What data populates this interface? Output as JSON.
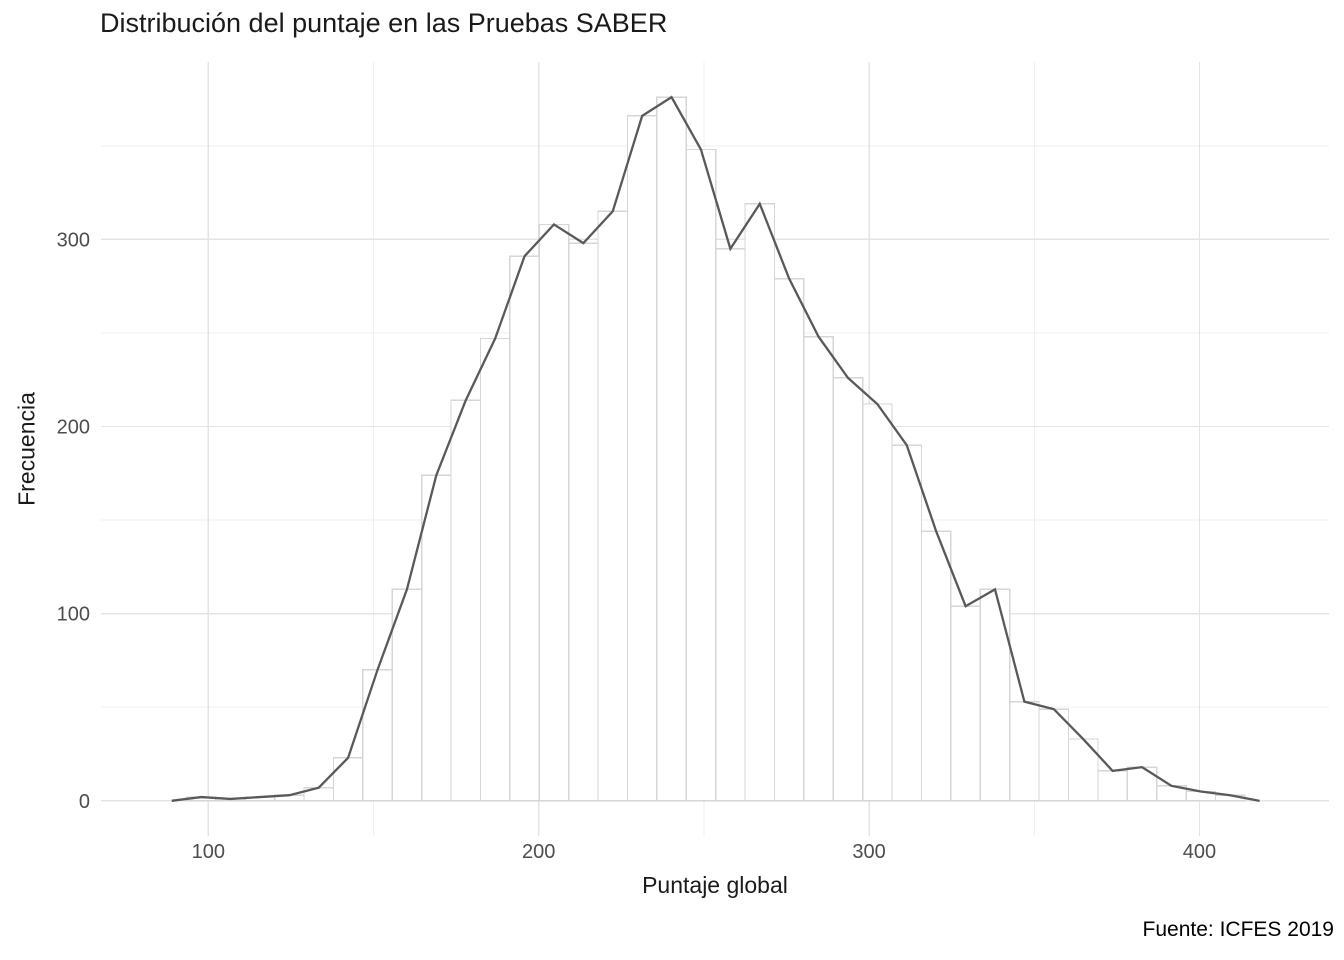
{
  "title": "Distribución del puntaje en las Pruebas SABER",
  "caption": "Fuente: ICFES 2019",
  "chart_data": {
    "type": "bar",
    "subtype": "histogram-with-frequency-polygon",
    "title": "Distribución del puntaje en las Pruebas SABER",
    "xlabel": "Puntaje global",
    "ylabel": "Frecuencia",
    "caption": "Fuente: ICFES 2019",
    "binwidth": 8.9,
    "bin_centers": [
      97.8,
      106.7,
      115.6,
      124.5,
      133.4,
      142.3,
      151.2,
      160.1,
      169.0,
      177.9,
      186.8,
      195.7,
      204.6,
      213.5,
      222.4,
      231.3,
      240.2,
      249.1,
      258.0,
      266.9,
      275.8,
      284.7,
      293.6,
      302.5,
      311.4,
      320.3,
      329.2,
      338.1,
      347.0,
      355.9,
      364.8,
      373.7,
      382.6,
      391.5,
      400.4,
      409.3
    ],
    "bin_values": [
      2,
      1,
      2,
      3,
      7,
      23,
      70,
      113,
      174,
      214,
      247,
      291,
      308,
      298,
      315,
      366,
      376,
      348,
      295,
      319,
      279,
      248,
      226,
      212,
      190,
      144,
      104,
      113,
      53,
      49,
      33,
      16,
      18,
      8,
      5,
      3
    ],
    "freqpoly_x": [
      88.9,
      97.8,
      106.7,
      115.6,
      124.5,
      133.4,
      142.3,
      151.2,
      160.1,
      169.0,
      177.9,
      186.8,
      195.7,
      204.6,
      213.5,
      222.4,
      231.3,
      240.2,
      249.1,
      258.0,
      266.9,
      275.8,
      284.7,
      293.6,
      302.5,
      311.4,
      320.3,
      329.2,
      338.1,
      347.0,
      355.9,
      364.8,
      373.7,
      382.6,
      391.5,
      400.4,
      409.3,
      418.2
    ],
    "freqpoly_y": [
      0,
      2,
      1,
      2,
      3,
      7,
      23,
      70,
      113,
      174,
      214,
      247,
      291,
      308,
      298,
      315,
      366,
      376,
      348,
      295,
      319,
      279,
      248,
      226,
      212,
      190,
      144,
      104,
      113,
      53,
      49,
      33,
      16,
      18,
      8,
      5,
      3,
      0
    ],
    "x_ticks": [
      100,
      200,
      300,
      400
    ],
    "y_ticks": [
      0,
      100,
      200,
      300
    ],
    "x_minor_gridlines": [
      150,
      250,
      350
    ],
    "y_minor_gridlines": [
      50,
      150,
      250,
      350
    ],
    "xlim": [
      67.5,
      439.2
    ],
    "ylim": [
      -18.8,
      394.8
    ],
    "grid": "on",
    "legend": "none",
    "colors": {
      "background": "#ffffff",
      "major_gridline": "#e4e4e4",
      "minor_gridline": "#efefef",
      "bar_fill": "#ffffff",
      "bar_outline": "#d6d6d6",
      "polygon_line": "#595959",
      "tick_label": "#4d4d4d",
      "text": "#1a1a1a"
    }
  }
}
